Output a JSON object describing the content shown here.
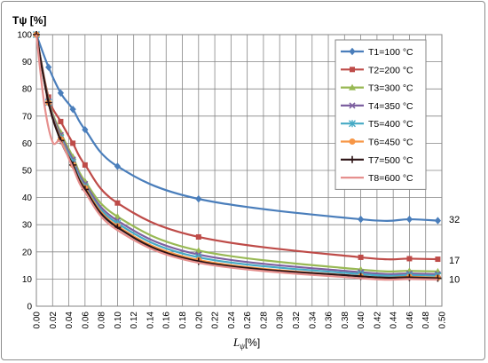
{
  "chart_data": {
    "type": "line",
    "ylabel": "Tψ [%]",
    "xlabel_main": "L",
    "xlabel_sub": "ψ",
    "xlabel_unit": "[%]",
    "xlim": [
      0,
      0.5
    ],
    "ylim": [
      0,
      100
    ],
    "xticks": [
      "0.00",
      "0.02",
      "0.04",
      "0.06",
      "0.08",
      "0.10",
      "0.12",
      "0.14",
      "0.16",
      "0.18",
      "0.20",
      "0.22",
      "0.24",
      "0.26",
      "0.28",
      "0.30",
      "0.32",
      "0.34",
      "0.36",
      "0.38",
      "0.40",
      "0.42",
      "0.44",
      "0.46",
      "0.48",
      "0.50"
    ],
    "yticks": [
      "0",
      "10",
      "20",
      "30",
      "40",
      "50",
      "60",
      "70",
      "80",
      "90",
      "100"
    ],
    "grid": true,
    "legend_position": "top-right",
    "end_labels": [
      {
        "text": "32",
        "y": 32
      },
      {
        "text": "17",
        "y": 17
      },
      {
        "text": "10",
        "y": 10
      }
    ],
    "series": [
      {
        "name": "T1=100 °C",
        "color": "#4a7ebb",
        "marker": "diamond",
        "x": [
          0,
          0.015,
          0.03,
          0.045,
          0.06,
          0.1,
          0.2,
          0.4,
          0.46,
          0.495
        ],
        "y": [
          100,
          88,
          78.5,
          72.5,
          65,
          51.5,
          39.5,
          32,
          32,
          31.5
        ]
      },
      {
        "name": "T2=200 °C",
        "color": "#be4b48",
        "marker": "square",
        "x": [
          0,
          0.015,
          0.03,
          0.045,
          0.06,
          0.1,
          0.2,
          0.4,
          0.46,
          0.495
        ],
        "y": [
          100,
          77,
          68,
          60,
          52,
          38,
          25.5,
          18,
          17.5,
          17.3
        ]
      },
      {
        "name": "T3=300 °C",
        "color": "#98b954",
        "marker": "triangle",
        "x": [
          0,
          0.015,
          0.03,
          0.045,
          0.06,
          0.1,
          0.2,
          0.4,
          0.46,
          0.495
        ],
        "y": [
          100,
          76,
          64,
          55,
          46,
          33,
          20.5,
          13.5,
          13,
          12.8
        ]
      },
      {
        "name": "T4=350 °C",
        "color": "#7d60a0",
        "marker": "x",
        "x": [
          0,
          0.015,
          0.03,
          0.045,
          0.06,
          0.1,
          0.2,
          0.4,
          0.46,
          0.495
        ],
        "y": [
          100,
          75.5,
          63,
          54,
          45,
          31.5,
          19,
          12.5,
          12,
          11.8
        ]
      },
      {
        "name": "T5=400 °C",
        "color": "#46aac5",
        "marker": "star",
        "x": [
          0,
          0.015,
          0.03,
          0.045,
          0.06,
          0.1,
          0.2,
          0.4,
          0.46,
          0.495
        ],
        "y": [
          100,
          75,
          62,
          53,
          44,
          30.5,
          18,
          11.8,
          11.4,
          11.2
        ]
      },
      {
        "name": "T6=450 °C",
        "color": "#f79646",
        "marker": "circle",
        "x": [
          0,
          0.015,
          0.03,
          0.045,
          0.06,
          0.1,
          0.2,
          0.4,
          0.46,
          0.495
        ],
        "y": [
          100,
          75,
          61.5,
          52,
          43.5,
          29.5,
          17,
          11,
          10.8,
          10.5
        ]
      },
      {
        "name": "T7=500 °C",
        "color": "#2c1315",
        "marker": "plus",
        "x": [
          0,
          0.015,
          0.03,
          0.045,
          0.06,
          0.1,
          0.2,
          0.4,
          0.46,
          0.495
        ],
        "y": [
          100,
          75,
          61,
          52,
          43,
          29,
          16.5,
          11,
          10.6,
          10.3
        ]
      },
      {
        "name": "T8=600 °C",
        "color": "#e6908e",
        "marker": "none",
        "x": [
          0,
          0.01,
          0.02,
          0.03,
          0.045,
          0.06,
          0.1,
          0.2,
          0.4,
          0.46,
          0.495
        ],
        "y": [
          100,
          74,
          60.5,
          60.5,
          51,
          42,
          28,
          16,
          10.3,
          10,
          9.8
        ]
      }
    ]
  }
}
